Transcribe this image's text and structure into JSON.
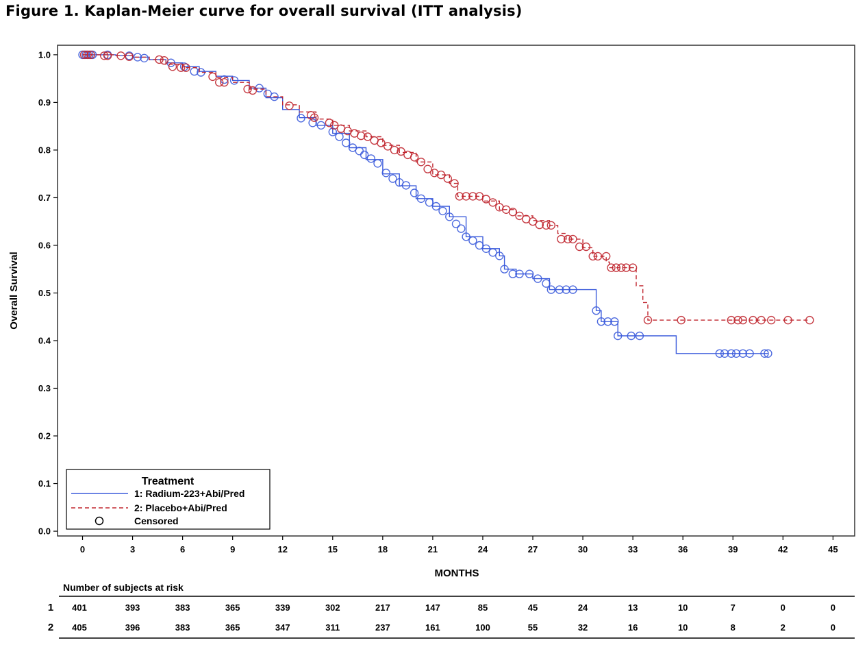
{
  "title": "Figure 1. Kaplan-Meier curve for overall survival (ITT analysis)",
  "colors": {
    "radium": "#3b5bdb",
    "placebo": "#c0262f",
    "axis": "#000000"
  },
  "chart_data": {
    "type": "line",
    "subtype": "kaplan-meier step",
    "xlabel": "MONTHS",
    "ylabel": "Overall Survival",
    "xlim": [
      -1.5,
      46.3
    ],
    "ylim": [
      -0.01,
      1.02
    ],
    "xticks": [
      0,
      3,
      6,
      9,
      12,
      15,
      18,
      21,
      24,
      27,
      30,
      33,
      36,
      39,
      42,
      45
    ],
    "yticks": [
      "0.0",
      "0.1",
      "0.2",
      "0.3",
      "0.4",
      "0.5",
      "0.6",
      "0.7",
      "0.8",
      "0.9",
      "1.0"
    ],
    "grid": false,
    "legend": {
      "position": "bottom-left",
      "title": "Treatment",
      "entries": [
        "1: Radium-223+Abi/Pred",
        "2: Placebo+Abi/Pred",
        "Censored"
      ]
    },
    "series": [
      {
        "name": "1: Radium-223+Abi/Pred",
        "line": "solid",
        "color": "#3b5bdb",
        "steps": [
          [
            0,
            1.0
          ],
          [
            2,
            0.998
          ],
          [
            3,
            0.995
          ],
          [
            4,
            0.99
          ],
          [
            5,
            0.983
          ],
          [
            6,
            0.975
          ],
          [
            7,
            0.965
          ],
          [
            8,
            0.955
          ],
          [
            9,
            0.946
          ],
          [
            10,
            0.93
          ],
          [
            11,
            0.91
          ],
          [
            12,
            0.885
          ],
          [
            13,
            0.868
          ],
          [
            14,
            0.852
          ],
          [
            15,
            0.835
          ],
          [
            16,
            0.805
          ],
          [
            17,
            0.78
          ],
          [
            18,
            0.75
          ],
          [
            19,
            0.725
          ],
          [
            20,
            0.698
          ],
          [
            21,
            0.682
          ],
          [
            22,
            0.66
          ],
          [
            23,
            0.618
          ],
          [
            24,
            0.593
          ],
          [
            25,
            0.578
          ],
          [
            25.3,
            0.55
          ],
          [
            26,
            0.54
          ],
          [
            27,
            0.53
          ],
          [
            28,
            0.507
          ],
          [
            30.8,
            0.463
          ],
          [
            31.1,
            0.44
          ],
          [
            32.1,
            0.41
          ],
          [
            35.6,
            0.373
          ],
          [
            41.1,
            0.373
          ]
        ],
        "censored": [
          [
            0,
            1.0
          ],
          [
            0.2,
            1.0
          ],
          [
            0.4,
            1.0
          ],
          [
            0.6,
            1.0
          ],
          [
            1.5,
            1.0
          ],
          [
            2.8,
            0.998
          ],
          [
            3.3,
            0.995
          ],
          [
            3.7,
            0.993
          ],
          [
            5.3,
            0.983
          ],
          [
            6.1,
            0.975
          ],
          [
            6.7,
            0.965
          ],
          [
            7.1,
            0.963
          ],
          [
            8.5,
            0.948
          ],
          [
            9.1,
            0.946
          ],
          [
            10.6,
            0.93
          ],
          [
            11.1,
            0.918
          ],
          [
            11.5,
            0.912
          ],
          [
            13.1,
            0.867
          ],
          [
            13.8,
            0.857
          ],
          [
            14.3,
            0.852
          ],
          [
            15.0,
            0.838
          ],
          [
            15.4,
            0.828
          ],
          [
            15.8,
            0.815
          ],
          [
            16.2,
            0.805
          ],
          [
            16.6,
            0.798
          ],
          [
            16.9,
            0.79
          ],
          [
            17.3,
            0.782
          ],
          [
            17.7,
            0.772
          ],
          [
            18.2,
            0.752
          ],
          [
            18.6,
            0.74
          ],
          [
            19.0,
            0.732
          ],
          [
            19.4,
            0.726
          ],
          [
            19.9,
            0.71
          ],
          [
            20.3,
            0.698
          ],
          [
            20.8,
            0.69
          ],
          [
            21.2,
            0.682
          ],
          [
            21.6,
            0.672
          ],
          [
            22.0,
            0.66
          ],
          [
            22.4,
            0.645
          ],
          [
            22.7,
            0.635
          ],
          [
            23.0,
            0.618
          ],
          [
            23.4,
            0.61
          ],
          [
            23.8,
            0.6
          ],
          [
            24.2,
            0.593
          ],
          [
            24.6,
            0.585
          ],
          [
            25.0,
            0.578
          ],
          [
            25.3,
            0.55
          ],
          [
            25.8,
            0.54
          ],
          [
            26.2,
            0.54
          ],
          [
            26.8,
            0.54
          ],
          [
            27.3,
            0.53
          ],
          [
            27.8,
            0.52
          ],
          [
            28.1,
            0.507
          ],
          [
            28.6,
            0.507
          ],
          [
            29.0,
            0.507
          ],
          [
            29.4,
            0.507
          ],
          [
            30.8,
            0.463
          ],
          [
            31.1,
            0.44
          ],
          [
            31.5,
            0.44
          ],
          [
            31.9,
            0.44
          ],
          [
            32.1,
            0.41
          ],
          [
            32.9,
            0.41
          ],
          [
            33.4,
            0.41
          ],
          [
            38.2,
            0.373
          ],
          [
            38.5,
            0.373
          ],
          [
            38.9,
            0.373
          ],
          [
            39.2,
            0.373
          ],
          [
            39.6,
            0.373
          ],
          [
            40.0,
            0.373
          ],
          [
            40.9,
            0.373
          ],
          [
            41.1,
            0.373
          ]
        ]
      },
      {
        "name": "2: Placebo+Abi/Pred",
        "line": "dashed",
        "color": "#c0262f",
        "steps": [
          [
            0,
            1.0
          ],
          [
            2,
            0.998
          ],
          [
            3,
            0.995
          ],
          [
            4,
            0.99
          ],
          [
            5,
            0.98
          ],
          [
            6,
            0.973
          ],
          [
            7,
            0.963
          ],
          [
            8,
            0.952
          ],
          [
            9,
            0.942
          ],
          [
            10,
            0.928
          ],
          [
            11,
            0.912
          ],
          [
            12,
            0.895
          ],
          [
            13,
            0.88
          ],
          [
            14,
            0.865
          ],
          [
            15,
            0.852
          ],
          [
            16,
            0.84
          ],
          [
            17,
            0.828
          ],
          [
            18,
            0.81
          ],
          [
            19,
            0.795
          ],
          [
            20,
            0.775
          ],
          [
            21,
            0.748
          ],
          [
            22,
            0.73
          ],
          [
            22.5,
            0.703
          ],
          [
            24,
            0.693
          ],
          [
            25,
            0.675
          ],
          [
            26,
            0.662
          ],
          [
            27,
            0.652
          ],
          [
            28,
            0.642
          ],
          [
            28.5,
            0.625
          ],
          [
            29,
            0.613
          ],
          [
            30,
            0.595
          ],
          [
            30.6,
            0.577
          ],
          [
            31.4,
            0.565
          ],
          [
            31.6,
            0.553
          ],
          [
            32.3,
            0.553
          ],
          [
            33.2,
            0.515
          ],
          [
            33.6,
            0.48
          ],
          [
            33.9,
            0.443
          ],
          [
            43.6,
            0.443
          ]
        ],
        "censored": [
          [
            0.1,
            1.0
          ],
          [
            0.3,
            1.0
          ],
          [
            0.5,
            1.0
          ],
          [
            1.3,
            0.998
          ],
          [
            1.5,
            0.998
          ],
          [
            2.3,
            0.998
          ],
          [
            2.8,
            0.996
          ],
          [
            4.6,
            0.99
          ],
          [
            4.9,
            0.988
          ],
          [
            5.4,
            0.975
          ],
          [
            5.9,
            0.973
          ],
          [
            6.2,
            0.973
          ],
          [
            7.8,
            0.954
          ],
          [
            8.2,
            0.942
          ],
          [
            8.5,
            0.942
          ],
          [
            9.9,
            0.928
          ],
          [
            10.2,
            0.925
          ],
          [
            12.4,
            0.893
          ],
          [
            13.7,
            0.873
          ],
          [
            13.9,
            0.868
          ],
          [
            14.8,
            0.857
          ],
          [
            15.1,
            0.852
          ],
          [
            15.5,
            0.845
          ],
          [
            15.9,
            0.84
          ],
          [
            16.3,
            0.835
          ],
          [
            16.7,
            0.83
          ],
          [
            17.1,
            0.828
          ],
          [
            17.5,
            0.82
          ],
          [
            17.9,
            0.815
          ],
          [
            18.3,
            0.808
          ],
          [
            18.7,
            0.8
          ],
          [
            19.1,
            0.797
          ],
          [
            19.5,
            0.79
          ],
          [
            19.9,
            0.785
          ],
          [
            20.3,
            0.775
          ],
          [
            20.7,
            0.76
          ],
          [
            21.1,
            0.752
          ],
          [
            21.5,
            0.748
          ],
          [
            21.9,
            0.74
          ],
          [
            22.3,
            0.73
          ],
          [
            22.6,
            0.703
          ],
          [
            23.0,
            0.703
          ],
          [
            23.4,
            0.703
          ],
          [
            23.8,
            0.703
          ],
          [
            24.2,
            0.697
          ],
          [
            24.6,
            0.69
          ],
          [
            25.0,
            0.68
          ],
          [
            25.4,
            0.675
          ],
          [
            25.8,
            0.67
          ],
          [
            26.2,
            0.662
          ],
          [
            26.6,
            0.655
          ],
          [
            27.0,
            0.65
          ],
          [
            27.4,
            0.643
          ],
          [
            27.8,
            0.642
          ],
          [
            28.1,
            0.642
          ],
          [
            28.7,
            0.613
          ],
          [
            29.1,
            0.613
          ],
          [
            29.4,
            0.613
          ],
          [
            29.8,
            0.597
          ],
          [
            30.2,
            0.597
          ],
          [
            30.6,
            0.577
          ],
          [
            30.9,
            0.577
          ],
          [
            31.4,
            0.577
          ],
          [
            31.7,
            0.553
          ],
          [
            32.0,
            0.553
          ],
          [
            32.3,
            0.553
          ],
          [
            32.6,
            0.553
          ],
          [
            33.0,
            0.553
          ],
          [
            33.9,
            0.443
          ],
          [
            35.9,
            0.443
          ],
          [
            38.9,
            0.443
          ],
          [
            39.3,
            0.443
          ],
          [
            39.6,
            0.443
          ],
          [
            40.2,
            0.443
          ],
          [
            40.7,
            0.443
          ],
          [
            41.3,
            0.443
          ],
          [
            42.3,
            0.443
          ],
          [
            43.6,
            0.443
          ]
        ]
      }
    ]
  },
  "risk_table": {
    "title": "Number of subjects at risk",
    "rows": [
      {
        "label": "1",
        "values": [
          "401",
          "393",
          "383",
          "365",
          "339",
          "302",
          "217",
          "147",
          "85",
          "45",
          "24",
          "13",
          "10",
          "7",
          "0",
          "0"
        ]
      },
      {
        "label": "2",
        "values": [
          "405",
          "396",
          "383",
          "365",
          "347",
          "311",
          "237",
          "161",
          "100",
          "55",
          "32",
          "16",
          "10",
          "8",
          "2",
          "0"
        ]
      }
    ]
  }
}
